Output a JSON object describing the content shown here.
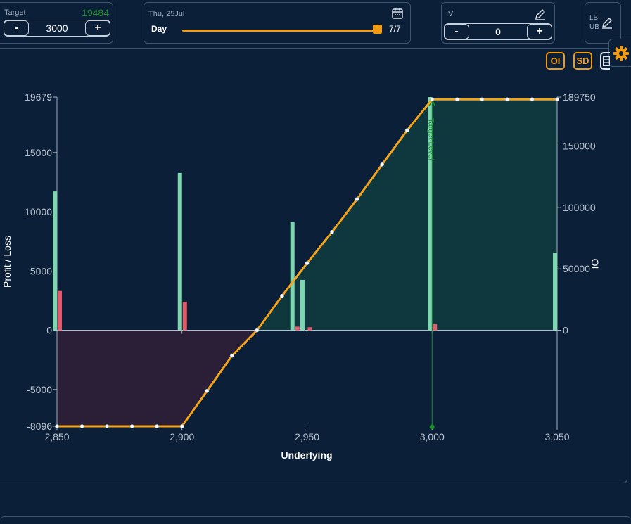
{
  "target": {
    "label": "Target",
    "computed": "19484",
    "value": "3000",
    "minus": "-",
    "plus": "+"
  },
  "day": {
    "date": "Thu, 25Jul",
    "label": "Day",
    "counter": "7/7",
    "progress": 1.0
  },
  "iv": {
    "label": "IV",
    "value": "0",
    "minus": "-",
    "plus": "+"
  },
  "bounds": {
    "lb": "LB",
    "ub": "UB"
  },
  "toolbar": {
    "oi": "OI",
    "sd": "SD"
  },
  "colors": {
    "accent": "#f39c12",
    "call_oi": "#7ed6b0",
    "put_oi": "#e05a6a",
    "profit_fill": "#0f3a3f",
    "loss_fill": "#2d1f36",
    "target_line": "#1a8f2a"
  },
  "chart_data": {
    "type": "line",
    "xlabel": "Underlying",
    "ylabel": "Profit / Loss",
    "y2label": "OI",
    "xlim": [
      2850,
      3050
    ],
    "ylim": [
      -8096,
      19679
    ],
    "y2lim": [
      0,
      189750
    ],
    "x_ticks": [
      "2,850",
      "2,900",
      "2,950",
      "3,000",
      "3,050"
    ],
    "x_tick_values": [
      2850,
      2900,
      2950,
      3000,
      3050
    ],
    "y_ticks": [
      "19679",
      "15000",
      "10000",
      "5000",
      "0",
      "-5000",
      "-8096"
    ],
    "y_tick_values": [
      19679,
      15000,
      10000,
      5000,
      0,
      -5000,
      -8096
    ],
    "y2_ticks": [
      "189750",
      "150000",
      "100000",
      "50000",
      "0"
    ],
    "y2_tick_values": [
      189750,
      150000,
      100000,
      50000,
      0
    ],
    "payoff": {
      "x": [
        2850,
        2860,
        2870,
        2880,
        2890,
        2900,
        2910,
        2920,
        2930,
        2940,
        2950,
        2960,
        2970,
        2980,
        2990,
        3000,
        3010,
        3020,
        3030,
        3040,
        3050
      ],
      "y": [
        -8096,
        -8096,
        -8096,
        -8096,
        -8096,
        -8096,
        -5118,
        -2140,
        0,
        2900,
        5660,
        8300,
        11070,
        13990,
        16870,
        19484,
        19484,
        19484,
        19484,
        19484,
        19484
      ]
    },
    "oi_call": {
      "x": [
        2850,
        2900,
        2945,
        2949,
        3000,
        3050
      ],
      "values": [
        113000,
        128000,
        88000,
        41000,
        189750,
        63000
      ]
    },
    "oi_put": {
      "x": [
        2850,
        2900,
        2945,
        2950,
        3000
      ],
      "values": [
        32000,
        23000,
        3000,
        2500,
        5000
      ]
    },
    "target_level": {
      "x": 3000,
      "label": "Target Level"
    }
  }
}
